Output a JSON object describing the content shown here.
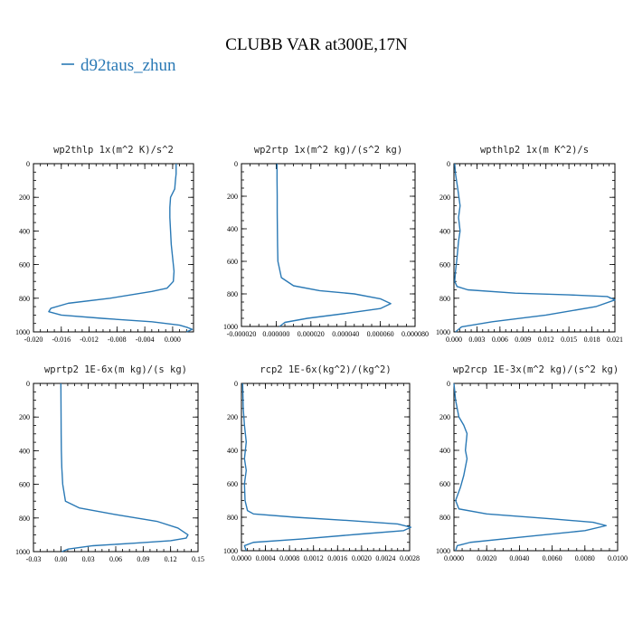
{
  "title": "CLUBB VAR at300E,17N",
  "legend": {
    "label": "d92taus_zhun",
    "color": "#2a79b5"
  },
  "chart_data": [
    {
      "type": "line",
      "title": "wp2thlp   1x(m^2 K)/s^2",
      "xlim": [
        -0.02,
        0.003
      ],
      "ylim": [
        1000,
        0
      ],
      "xticks": [
        -0.02,
        -0.016,
        -0.012,
        -0.008,
        -0.004,
        0.0
      ],
      "xtick_labels": [
        "-0.020",
        "-0.016",
        "-0.012",
        "-0.008",
        "-0.004",
        "0.000"
      ],
      "yticks": [
        0,
        200,
        400,
        600,
        800,
        1000
      ],
      "ytick_labels": [
        "0",
        "200",
        "400",
        "600",
        "800",
        "1000"
      ],
      "series": [
        {
          "color": "#2a79b5",
          "x": [
            0.0005,
            0.0005,
            0.0004,
            0.0003,
            -0.0003,
            -0.0004,
            -0.0004,
            -0.0003,
            -0.0002,
            0.0,
            0.0002,
            0.0001,
            -0.0008,
            -0.003,
            -0.009,
            -0.015,
            -0.0175,
            -0.0178,
            -0.016,
            -0.01,
            -0.003,
            0.001,
            0.0022,
            0.0028,
            0.002
          ],
          "y": [
            0,
            60,
            100,
            150,
            200,
            260,
            320,
            400,
            480,
            560,
            640,
            700,
            740,
            760,
            800,
            830,
            860,
            880,
            900,
            920,
            940,
            960,
            975,
            985,
            1000
          ]
        }
      ]
    },
    {
      "type": "line",
      "title": "wp2rtp   1x(m^2 kg)/(s^2 kg)",
      "xlim": [
        -2e-05,
        8e-05
      ],
      "ylim": [
        1000,
        0
      ],
      "xticks": [
        -2e-05,
        0.0,
        2e-05,
        4e-05,
        6e-05,
        8e-05
      ],
      "xtick_labels": [
        "-0.000020",
        "0.000000",
        "0.000020",
        "0.000040",
        "0.000060",
        "0.000080"
      ],
      "yticks": [
        0,
        200,
        400,
        600,
        800,
        1000
      ],
      "ytick_labels": [
        "0",
        "200",
        "400",
        "600",
        "800",
        "1000"
      ],
      "series": [
        {
          "color": "#2a79b5",
          "x": [
            5e-07,
            5e-07,
            6e-07,
            6e-07,
            7e-07,
            8e-07,
            1e-06,
            3e-06,
            1e-05,
            2.5e-05,
            4.5e-05,
            6e-05,
            6.6e-05,
            6e-05,
            4e-05,
            1.8e-05,
            5e-06,
            2e-06
          ],
          "y": [
            0,
            100,
            200,
            300,
            400,
            500,
            600,
            700,
            750,
            780,
            800,
            830,
            860,
            890,
            920,
            950,
            975,
            1000
          ]
        }
      ]
    },
    {
      "type": "line",
      "title": "wpthlp2   1x(m K^2)/s",
      "xlim": [
        0.0,
        0.021
      ],
      "ylim": [
        1000,
        0
      ],
      "xticks": [
        0.0,
        0.003,
        0.006,
        0.009,
        0.012,
        0.015,
        0.018,
        0.021
      ],
      "xtick_labels": [
        "0.000",
        "0.003",
        "0.006",
        "0.009",
        "0.012",
        "0.015",
        "0.018",
        "0.021"
      ],
      "yticks": [
        0,
        200,
        400,
        600,
        800,
        1000
      ],
      "ytick_labels": [
        "0",
        "200",
        "400",
        "600",
        "800",
        "1000"
      ],
      "series": [
        {
          "color": "#2a79b5",
          "x": [
            0.0001,
            0.0002,
            0.0005,
            0.0008,
            0.0006,
            0.0008,
            0.0006,
            0.0004,
            0.0002,
            0.0001,
            0.0004,
            0.0018,
            0.008,
            0.015,
            0.02,
            0.021,
            0.0185,
            0.012,
            0.005,
            0.001,
            0.0002
          ],
          "y": [
            0,
            60,
            150,
            250,
            320,
            400,
            460,
            560,
            640,
            700,
            730,
            750,
            770,
            780,
            790,
            810,
            850,
            900,
            940,
            970,
            1000
          ]
        }
      ]
    },
    {
      "type": "line",
      "title": "wprtp2   1E-6x(m kg)/(s kg)",
      "xlim": [
        -0.03,
        0.15
      ],
      "ylim": [
        1000,
        0
      ],
      "xticks": [
        -0.03,
        0.0,
        0.03,
        0.06,
        0.09,
        0.12,
        0.15
      ],
      "xtick_labels": [
        "-0.03",
        "0.00",
        "0.03",
        "0.06",
        "0.09",
        "0.12",
        "0.15"
      ],
      "yticks": [
        0,
        200,
        400,
        600,
        800,
        1000
      ],
      "ytick_labels": [
        "0",
        "200",
        "400",
        "600",
        "800",
        "1000"
      ],
      "series": [
        {
          "color": "#2a79b5",
          "x": [
            0.0,
            0.0001,
            0.0002,
            0.0003,
            0.0005,
            0.001,
            0.002,
            0.005,
            0.02,
            0.06,
            0.105,
            0.128,
            0.139,
            0.137,
            0.12,
            0.08,
            0.035,
            0.008,
            0.001
          ],
          "y": [
            0,
            100,
            200,
            300,
            400,
            500,
            600,
            700,
            740,
            780,
            820,
            860,
            900,
            920,
            935,
            950,
            965,
            985,
            1000
          ]
        }
      ]
    },
    {
      "type": "line",
      "title": "rcp2   1E-6x(kg^2)/(kg^2)",
      "xlim": [
        0.0,
        0.0028
      ],
      "ylim": [
        1000,
        0
      ],
      "xticks": [
        0.0,
        0.0004,
        0.0008,
        0.0012,
        0.0016,
        0.002,
        0.0024,
        0.0028
      ],
      "xtick_labels": [
        "0.0000",
        "0.0004",
        "0.0008",
        "0.0012",
        "0.0016",
        "0.0020",
        "0.0024",
        "0.0028"
      ],
      "yticks": [
        0,
        200,
        400,
        600,
        800,
        1000
      ],
      "ytick_labels": [
        "0",
        "200",
        "400",
        "600",
        "800",
        "1000"
      ],
      "series": [
        {
          "color": "#2a79b5",
          "x": [
            2e-05,
            3e-05,
            5e-05,
            8e-05,
            5e-05,
            8e-05,
            5e-05,
            6e-05,
            0.0001,
            0.0002,
            0.0009,
            0.0018,
            0.0026,
            0.00282,
            0.0027,
            0.002,
            0.001,
            0.0002,
            5e-05,
            8e-05
          ],
          "y": [
            0,
            150,
            250,
            350,
            450,
            520,
            600,
            700,
            760,
            780,
            800,
            820,
            840,
            860,
            880,
            900,
            930,
            950,
            970,
            1000
          ]
        }
      ]
    },
    {
      "type": "line",
      "title": "wp2rcp   1E-3x(m^2 kg)/(s^2 kg)",
      "xlim": [
        0.0,
        0.01
      ],
      "ylim": [
        1000,
        0
      ],
      "xticks": [
        0.0,
        0.002,
        0.004,
        0.006,
        0.008,
        0.01
      ],
      "xtick_labels": [
        "0.0000",
        "0.0020",
        "0.0040",
        "0.0060",
        "0.0080",
        "0.0100"
      ],
      "yticks": [
        0,
        200,
        400,
        600,
        800,
        1000
      ],
      "ytick_labels": [
        "0",
        "200",
        "400",
        "600",
        "800",
        "1000"
      ],
      "series": [
        {
          "color": "#2a79b5",
          "x": [
            0.0,
            0.0001,
            0.0003,
            0.0006,
            0.0008,
            0.0007,
            0.0008,
            0.0006,
            0.0004,
            0.0001,
            0.0003,
            0.002,
            0.006,
            0.0085,
            0.0093,
            0.008,
            0.004,
            0.001,
            0.0002,
            0.0001
          ],
          "y": [
            0,
            100,
            200,
            250,
            300,
            400,
            450,
            550,
            620,
            700,
            750,
            780,
            810,
            830,
            850,
            880,
            920,
            950,
            970,
            1000
          ]
        }
      ]
    }
  ]
}
